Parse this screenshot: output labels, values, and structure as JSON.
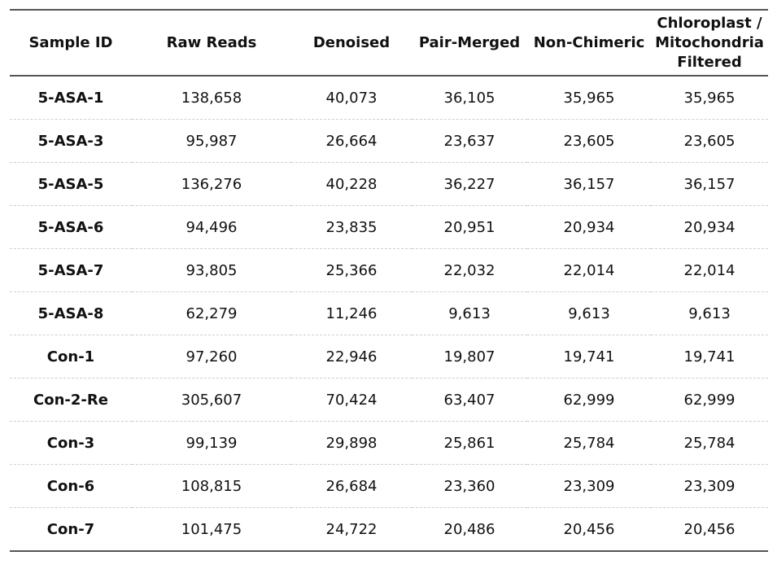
{
  "chart_data": {
    "type": "table",
    "columns": [
      "Sample ID",
      "Raw Reads",
      "Denoised",
      "Pair-Merged",
      "Non-Chimeric",
      "Chloroplast / Mitochondria Filtered"
    ],
    "header_lines": {
      "col5": [
        "Chloroplast /",
        "Mitochondria",
        "Filtered"
      ]
    },
    "rows": [
      [
        "5-ASA-1",
        "138,658",
        "40,073",
        "36,105",
        "35,965",
        "35,965"
      ],
      [
        "5-ASA-3",
        "95,987",
        "26,664",
        "23,637",
        "23,605",
        "23,605"
      ],
      [
        "5-ASA-5",
        "136,276",
        "40,228",
        "36,227",
        "36,157",
        "36,157"
      ],
      [
        "5-ASA-6",
        "94,496",
        "23,835",
        "20,951",
        "20,934",
        "20,934"
      ],
      [
        "5-ASA-7",
        "93,805",
        "25,366",
        "22,032",
        "22,014",
        "22,014"
      ],
      [
        "5-ASA-8",
        "62,279",
        "11,246",
        "9,613",
        "9,613",
        "9,613"
      ],
      [
        "Con-1",
        "97,260",
        "22,946",
        "19,807",
        "19,741",
        "19,741"
      ],
      [
        "Con-2-Re",
        "305,607",
        "70,424",
        "63,407",
        "62,999",
        "62,999"
      ],
      [
        "Con-3",
        "99,139",
        "29,898",
        "25,861",
        "25,784",
        "25,784"
      ],
      [
        "Con-6",
        "108,815",
        "26,684",
        "23,360",
        "23,309",
        "23,309"
      ],
      [
        "Con-7",
        "101,475",
        "24,722",
        "20,486",
        "20,456",
        "20,456"
      ]
    ]
  }
}
